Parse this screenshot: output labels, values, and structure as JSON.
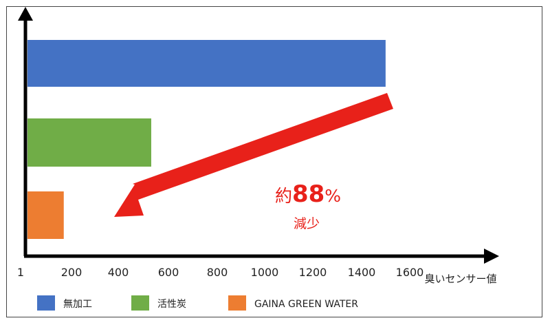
{
  "chart_data": {
    "type": "bar",
    "orientation": "horizontal",
    "categories": [
      "無加工",
      "活性炭",
      "GAINA GREEN WATER"
    ],
    "values": [
      1500,
      530,
      165
    ],
    "colors": [
      "#4472C4",
      "#70AD47",
      "#ED7D31"
    ],
    "x_ticks": [
      "1",
      "200",
      "400",
      "600",
      "800",
      "1000",
      "1200",
      "1400",
      "1600"
    ],
    "x_tick_values": [
      1,
      200,
      400,
      600,
      800,
      1000,
      1200,
      1400,
      1600
    ],
    "xlabel": "臭いセンサー値",
    "ylabel": "",
    "title": "",
    "xlim": [
      1,
      1600
    ],
    "legend": {
      "position": "bottom",
      "entries": [
        "無加工",
        "活性炭",
        "GAINA GREEN WATER"
      ]
    },
    "annotation": {
      "prefix": "約",
      "number": "88",
      "suffix": "%",
      "sub": "減少",
      "color": "#E8211A"
    },
    "grid": false
  }
}
